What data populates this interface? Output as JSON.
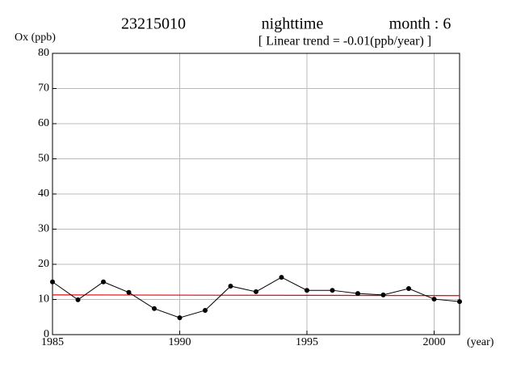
{
  "chart_data": {
    "type": "line",
    "title": "23215010",
    "title_middle": "nighttime",
    "title_right": "month : 6",
    "subtitle": "[ Linear trend = -0.01(ppb/year) ]",
    "y_label": "Ox (ppb)",
    "x_label": "(year)",
    "x": [
      1985,
      1986,
      1987,
      1988,
      1989,
      1990,
      1991,
      1992,
      1993,
      1994,
      1995,
      1996,
      1997,
      1998,
      1999,
      2000,
      2001
    ],
    "series": [
      {
        "color": "#000000",
        "values": [
          15,
          9.9,
          15,
          12,
          7.4,
          4.8,
          6.9,
          13.8,
          12.2,
          16.3,
          12.6,
          12.6,
          11.7,
          11.3,
          13.1,
          10.1,
          9.4
        ]
      }
    ],
    "trend": {
      "color": "#e8000b",
      "x": [
        1985,
        2001
      ],
      "values": [
        11.3,
        11.1
      ]
    },
    "xlim": [
      1985,
      2001
    ],
    "xticks": [
      1985,
      1990,
      1995,
      2000
    ],
    "ylim": [
      0,
      80
    ],
    "yticks": [
      0,
      10,
      20,
      30,
      40,
      50,
      60,
      70,
      80
    ],
    "grid": true
  }
}
